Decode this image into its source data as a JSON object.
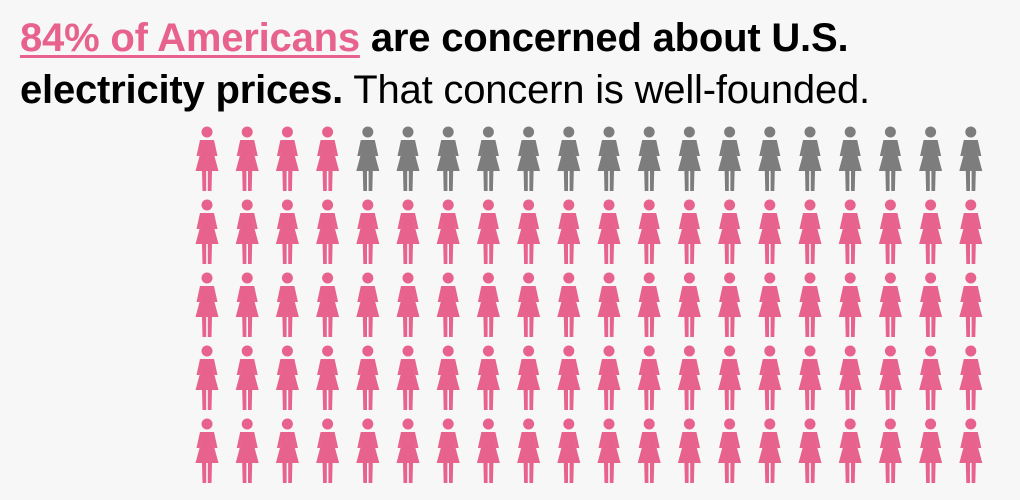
{
  "headline": {
    "link_text": "84% of Americans",
    "bold_text": " are concerned about U.S. electricity prices.",
    "regular_text": " That concern is well-founded."
  },
  "colors": {
    "concerned": "#e8628e",
    "not_concerned": "#7d7d7d",
    "background": "#f7f7f7"
  },
  "icon": "person-icon",
  "chart_data": {
    "type": "icon-array",
    "total": 100,
    "rows": 5,
    "columns": 20,
    "categories": [
      "concerned",
      "not concerned"
    ],
    "values": [
      84,
      16
    ],
    "fill_order": "bottom-to-top, left-to-right"
  }
}
